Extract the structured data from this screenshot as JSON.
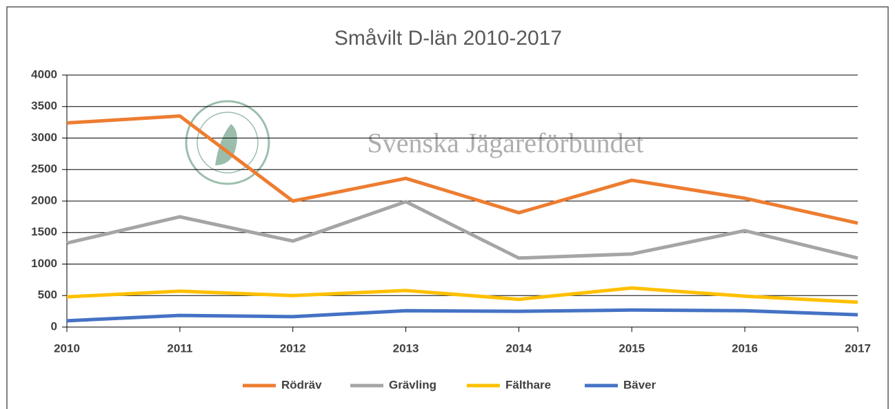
{
  "chart_data": {
    "type": "line",
    "title": "Småvilt D-län 2010-2017",
    "watermark": "Svenska Jägareförbundet",
    "x": [
      2010,
      2011,
      2012,
      2013,
      2014,
      2015,
      2016,
      2017
    ],
    "xlim": [
      2010,
      2017
    ],
    "xticks": [
      2010,
      2011,
      2012,
      2013,
      2014,
      2015,
      2016,
      2017
    ],
    "ylim": [
      0,
      4000
    ],
    "yticks": [
      0,
      500,
      1000,
      1500,
      2000,
      2500,
      3000,
      3500,
      4000
    ],
    "grid": true,
    "legend": "bottom",
    "series": [
      {
        "name": "Rödräv",
        "color": "#ed7d31",
        "values": [
          3240,
          3350,
          2000,
          2360,
          1815,
          2330,
          2045,
          1650
        ]
      },
      {
        "name": "Grävling",
        "color": "#a5a5a5",
        "values": [
          1333,
          1750,
          1365,
          1990,
          1095,
          1160,
          1530,
          1095
        ]
      },
      {
        "name": "Fälthare",
        "color": "#ffc000",
        "values": [
          480,
          570,
          500,
          580,
          440,
          620,
          490,
          395
        ]
      },
      {
        "name": "Bäver",
        "color": "#4472c4",
        "values": [
          100,
          185,
          165,
          260,
          250,
          270,
          260,
          195
        ]
      }
    ]
  }
}
